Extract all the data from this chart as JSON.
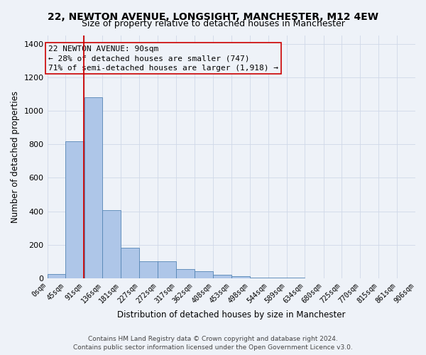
{
  "title": "22, NEWTON AVENUE, LONGSIGHT, MANCHESTER, M12 4EW",
  "subtitle": "Size of property relative to detached houses in Manchester",
  "xlabel": "Distribution of detached houses by size in Manchester",
  "ylabel": "Number of detached properties",
  "footer_line1": "Contains HM Land Registry data © Crown copyright and database right 2024.",
  "footer_line2": "Contains public sector information licensed under the Open Government Licence v3.0.",
  "annotation_line1": "22 NEWTON AVENUE: 90sqm",
  "annotation_line2": "← 28% of detached houses are smaller (747)",
  "annotation_line3": "71% of semi-detached houses are larger (1,918) →",
  "bar_values": [
    25,
    820,
    1080,
    405,
    180,
    100,
    100,
    55,
    40,
    20,
    10,
    5,
    3,
    2,
    1,
    1,
    0,
    0,
    0,
    0
  ],
  "bin_edges": [
    0,
    45,
    91,
    136,
    181,
    227,
    272,
    317,
    362,
    408,
    453,
    498,
    544,
    589,
    634,
    680,
    725,
    770,
    815,
    861,
    906
  ],
  "tick_labels": [
    "0sqm",
    "45sqm",
    "91sqm",
    "136sqm",
    "181sqm",
    "227sqm",
    "272sqm",
    "317sqm",
    "362sqm",
    "408sqm",
    "453sqm",
    "498sqm",
    "544sqm",
    "589sqm",
    "634sqm",
    "680sqm",
    "725sqm",
    "770sqm",
    "815sqm",
    "861sqm",
    "906sqm"
  ],
  "red_line_x": 90,
  "bar_color": "#aec6e8",
  "bar_edge_color": "#5585b5",
  "red_line_color": "#cc0000",
  "annotation_box_color": "#cc0000",
  "grid_color": "#d0d8e8",
  "background_color": "#eef2f8",
  "ylim": [
    0,
    1450
  ],
  "yticks": [
    0,
    200,
    400,
    600,
    800,
    1000,
    1200,
    1400
  ],
  "title_fontsize": 10,
  "subtitle_fontsize": 9,
  "axis_label_fontsize": 8.5,
  "tick_fontsize": 7,
  "annotation_fontsize": 8,
  "footer_fontsize": 6.5
}
